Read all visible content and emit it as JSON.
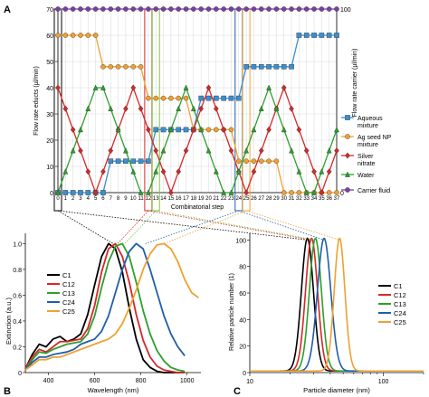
{
  "panels": {
    "a": "A",
    "b": "B",
    "c": "C"
  },
  "chart_data": [
    {
      "type": "line",
      "panel": "A",
      "xlabel": "Combinatorial step",
      "ylabel": "Flow rate educts (µl/min)",
      "y2label": "Flow rate carrier (µl/min)",
      "x": [
        0,
        1,
        2,
        3,
        4,
        5,
        6,
        7,
        8,
        9,
        10,
        11,
        12,
        13,
        14,
        15,
        16,
        17,
        18,
        19,
        20,
        21,
        22,
        23,
        24,
        25,
        26,
        27,
        28,
        29,
        30,
        31,
        32,
        33,
        34,
        35,
        36,
        37
      ],
      "xticks": [
        "0",
        "1",
        "2",
        "3",
        "4",
        "5",
        "6",
        "7",
        "8",
        "9",
        "10",
        "11",
        "12",
        "13",
        "14",
        "15",
        "16",
        "17",
        "18",
        "19",
        "20",
        "21",
        "22",
        "23",
        "24",
        "25",
        "26",
        "27",
        "28",
        "29",
        "30",
        "31",
        "32",
        "33",
        "34",
        "35",
        "36",
        "37"
      ],
      "xlim": [
        0,
        37
      ],
      "ylim": [
        0,
        70
      ],
      "yticks": [
        "0",
        "10",
        "20",
        "30",
        "40",
        "50",
        "60",
        "70"
      ],
      "y2ticks": [
        "0",
        "100"
      ],
      "y2lim": [
        0,
        100
      ],
      "grid": true,
      "legend_position": "right",
      "highlight_steps": [
        {
          "x": 0,
          "color": "#000000"
        },
        {
          "x": 12,
          "color": "#d62728"
        },
        {
          "x": 13,
          "color": "#7fc241"
        },
        {
          "x": 24,
          "color": "#1f5fa8"
        },
        {
          "x": 25,
          "color": "#f0a030"
        }
      ],
      "series": [
        {
          "name": "Aqueous mixture",
          "color": "#3b8fd0",
          "marker": "square",
          "values": [
            0,
            0,
            0,
            0,
            0,
            0,
            0,
            12,
            12,
            12,
            12,
            12,
            12,
            24,
            24,
            24,
            24,
            24,
            24,
            36,
            36,
            36,
            36,
            36,
            36,
            48,
            48,
            48,
            48,
            48,
            48,
            48,
            60,
            60,
            60,
            60,
            60,
            60
          ]
        },
        {
          "name": "Ag seed NP mixture",
          "color": "#f0a030",
          "marker": "circle",
          "values": [
            60,
            60,
            60,
            60,
            60,
            60,
            48,
            48,
            48,
            48,
            48,
            48,
            36,
            36,
            36,
            36,
            36,
            36,
            24,
            24,
            24,
            24,
            24,
            24,
            12,
            12,
            12,
            12,
            12,
            12,
            0,
            0,
            0,
            0,
            0,
            0,
            0,
            0
          ]
        },
        {
          "name": "Silver nitrate",
          "color": "#d62728",
          "marker": "diamond",
          "values": [
            40,
            32,
            24,
            16,
            8,
            0,
            8,
            16,
            24,
            32,
            40,
            32,
            24,
            16,
            8,
            0,
            8,
            16,
            24,
            32,
            40,
            32,
            24,
            16,
            8,
            0,
            8,
            16,
            24,
            32,
            40,
            32,
            24,
            16,
            8,
            0,
            8,
            16
          ]
        },
        {
          "name": "Water",
          "color": "#2ca02c",
          "marker": "triangle",
          "values": [
            0,
            8,
            16,
            24,
            32,
            40,
            40,
            32,
            24,
            16,
            8,
            0,
            0,
            8,
            16,
            24,
            32,
            40,
            32,
            24,
            16,
            8,
            0,
            0,
            8,
            16,
            24,
            32,
            40,
            32,
            24,
            16,
            8,
            0,
            0,
            8,
            16,
            24
          ]
        },
        {
          "name": "Carrier fluid",
          "color": "#7b3fa0",
          "marker": "circle",
          "axis": "right",
          "values": [
            100,
            100,
            100,
            100,
            100,
            100,
            100,
            100,
            100,
            100,
            100,
            100,
            100,
            100,
            100,
            100,
            100,
            100,
            100,
            100,
            100,
            100,
            100,
            100,
            100,
            100,
            100,
            100,
            100,
            100,
            100,
            100,
            100,
            100,
            100,
            100,
            100,
            100
          ]
        }
      ]
    },
    {
      "type": "line",
      "panel": "B",
      "xlabel": "Wavelength (nm)",
      "ylabel": "Extinction (a.u.)",
      "xlim": [
        300,
        1060
      ],
      "ylim": [
        0,
        1.08
      ],
      "xticks": [
        400,
        600,
        800,
        1000
      ],
      "yticks": [
        0,
        0.2,
        0.4,
        0.6,
        0.8,
        1.0
      ],
      "ytick_labels": [
        "0",
        "0.2",
        "0.4",
        "0.6",
        "0.8",
        "1.0"
      ],
      "legend_position": "left",
      "x": [
        300,
        330,
        360,
        390,
        420,
        450,
        480,
        510,
        540,
        570,
        600,
        630,
        660,
        690,
        720,
        750,
        780,
        810,
        840,
        870,
        900,
        930,
        960,
        990,
        1020,
        1050
      ],
      "series": [
        {
          "name": "C1",
          "color": "#000000",
          "values": [
            0.03,
            0.14,
            0.22,
            0.2,
            0.26,
            0.28,
            0.24,
            0.26,
            0.3,
            0.45,
            0.68,
            0.9,
            1.0,
            0.96,
            0.78,
            0.5,
            0.26,
            0.1,
            0.04,
            0.01,
            0.0,
            0.0,
            0.0,
            0.0,
            null,
            null
          ]
        },
        {
          "name": "C12",
          "color": "#d62728",
          "values": [
            0.03,
            0.12,
            0.18,
            0.16,
            0.2,
            0.24,
            0.24,
            0.25,
            0.26,
            0.34,
            0.52,
            0.78,
            0.96,
            1.0,
            0.9,
            0.7,
            0.45,
            0.25,
            0.12,
            0.05,
            0.02,
            0.01,
            0.0,
            0.0,
            null,
            null
          ]
        },
        {
          "name": "C13",
          "color": "#2ca02c",
          "values": [
            0.02,
            0.1,
            0.16,
            0.15,
            0.18,
            0.2,
            0.22,
            0.23,
            0.24,
            0.3,
            0.44,
            0.66,
            0.86,
            0.98,
            1.0,
            0.9,
            0.7,
            0.48,
            0.3,
            0.17,
            0.09,
            0.04,
            0.02,
            0.01,
            null,
            null
          ]
        },
        {
          "name": "C24",
          "color": "#1f5fa8",
          "values": [
            0.02,
            0.08,
            0.12,
            0.12,
            0.14,
            0.15,
            0.16,
            0.18,
            0.22,
            0.24,
            0.26,
            0.32,
            0.44,
            0.62,
            0.8,
            0.94,
            1.0,
            0.96,
            0.8,
            0.62,
            0.44,
            0.3,
            0.2,
            0.13,
            null,
            null
          ]
        },
        {
          "name": "C25",
          "color": "#f0a030",
          "values": [
            0.02,
            0.06,
            0.1,
            0.1,
            0.12,
            0.12,
            0.14,
            0.16,
            0.18,
            0.2,
            0.22,
            0.24,
            0.26,
            0.3,
            0.38,
            0.5,
            0.64,
            0.8,
            0.92,
            0.99,
            1.0,
            0.96,
            0.86,
            0.72,
            0.62,
            0.58
          ]
        }
      ]
    },
    {
      "type": "line",
      "panel": "C",
      "xlabel": "Particle diameter (nm)",
      "ylabel": "Relative particle number (1)",
      "xscale": "log",
      "xlim": [
        10,
        200
      ],
      "ylim": [
        0,
        105
      ],
      "xticks": [
        10,
        100
      ],
      "yticks": [
        0,
        20,
        40,
        60,
        80,
        100
      ],
      "legend_position": "right",
      "series": [
        {
          "name": "C1",
          "color": "#000000",
          "peak": 27,
          "width": 0.045
        },
        {
          "name": "C12",
          "color": "#d62728",
          "peak": 29,
          "width": 0.045
        },
        {
          "name": "C13",
          "color": "#2ca02c",
          "peak": 31,
          "width": 0.045
        },
        {
          "name": "C24",
          "color": "#1f5fa8",
          "peak": 36,
          "width": 0.05
        },
        {
          "name": "C25",
          "color": "#f0a030",
          "peak": 47,
          "width": 0.04
        }
      ]
    }
  ]
}
